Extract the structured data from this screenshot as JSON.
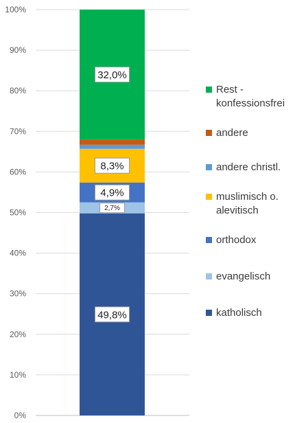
{
  "chart_data": {
    "type": "bar",
    "stacked": true,
    "categories": [
      ""
    ],
    "ylim": [
      0,
      100
    ],
    "y_ticks": [
      "0%",
      "10%",
      "20%",
      "30%",
      "40%",
      "50%",
      "60%",
      "70%",
      "80%",
      "90%",
      "100%"
    ],
    "grid": true,
    "legend_position": "right",
    "series": [
      {
        "name": "katholisch",
        "value": 49.8,
        "label": "49,8%",
        "color": "#2F5597"
      },
      {
        "name": "evangelisch",
        "value": 2.7,
        "label": "2,7%",
        "color": "#9DC3E6"
      },
      {
        "name": "orthodox",
        "value": 4.9,
        "label": "4,9%",
        "color": "#4472C4"
      },
      {
        "name": "muslimisch o. alevitisch",
        "value": 8.3,
        "label": "8,3%",
        "color": "#FFC000"
      },
      {
        "name": "andere christl.",
        "value": 1.0,
        "label": "",
        "color": "#5B9BD5"
      },
      {
        "name": "andere",
        "value": 1.3,
        "label": "",
        "color": "#C55A11"
      },
      {
        "name": "Rest - konfessionsfrei",
        "value": 32.0,
        "label": "32,0%",
        "color": "#00B050"
      }
    ]
  }
}
